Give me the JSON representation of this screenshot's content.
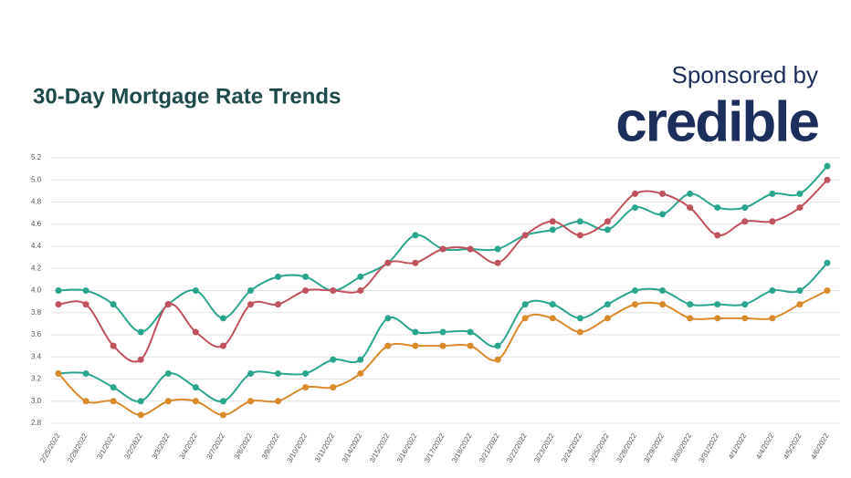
{
  "chart_data": {
    "type": "line",
    "title": "30-Day Mortgage Rate Trends",
    "sponsor_label": "Sponsored by",
    "sponsor": "credible",
    "categories": [
      "2/25/2022",
      "2/28/2022",
      "3/1/2022",
      "3/2/2022",
      "3/3/2022",
      "3/4/2022",
      "3/7/2022",
      "3/8/2022",
      "3/9/2022",
      "3/10/2022",
      "3/11/2022",
      "3/14/2022",
      "3/15/2022",
      "3/16/2022",
      "3/17/2022",
      "3/18/2022",
      "3/21/2022",
      "3/22/2022",
      "3/23/2022",
      "3/24/2022",
      "3/25/2022",
      "3/28/2022",
      "3/29/2022",
      "3/30/2022",
      "3/31/2022",
      "4/1/2022",
      "4/4/2022",
      "4/5/2022",
      "4/6/2022"
    ],
    "series": [
      {
        "color": "#2aa58e",
        "values": [
          4.0,
          4.0,
          3.875,
          3.625,
          3.875,
          4.0,
          3.75,
          4.0,
          4.125,
          4.125,
          4.0,
          4.125,
          4.25,
          4.5,
          4.375,
          4.375,
          4.375,
          4.5,
          4.55,
          4.625,
          4.55,
          4.75,
          4.69,
          4.875,
          4.75,
          4.75,
          4.875,
          4.875,
          5.125
        ]
      },
      {
        "color": "#c0525d",
        "values": [
          3.875,
          3.875,
          3.5,
          3.375,
          3.875,
          3.625,
          3.5,
          3.875,
          3.875,
          4.0,
          4.0,
          4.0,
          4.25,
          4.25,
          4.375,
          4.375,
          4.25,
          4.5,
          4.625,
          4.5,
          4.625,
          4.875,
          4.875,
          4.75,
          4.5,
          4.625,
          4.625,
          4.75,
          5.0
        ]
      },
      {
        "color": "#2aa58e",
        "values": [
          3.25,
          3.25,
          3.125,
          3.0,
          3.25,
          3.125,
          3.0,
          3.25,
          3.25,
          3.25,
          3.375,
          3.375,
          3.75,
          3.625,
          3.625,
          3.625,
          3.5,
          3.875,
          3.875,
          3.75,
          3.875,
          4.0,
          4.0,
          3.875,
          3.875,
          3.875,
          4.0,
          4.0,
          4.25
        ]
      },
      {
        "color": "#d98a2b",
        "values": [
          3.25,
          3.0,
          3.0,
          2.875,
          3.0,
          3.0,
          2.875,
          3.0,
          3.0,
          3.125,
          3.125,
          3.25,
          3.5,
          3.5,
          3.5,
          3.5,
          3.375,
          3.75,
          3.75,
          3.625,
          3.75,
          3.875,
          3.875,
          3.75,
          3.75,
          3.75,
          3.75,
          3.875,
          4.0
        ]
      }
    ],
    "ylim": [
      2.8,
      5.2
    ],
    "yticks": [
      2.8,
      {
        "value": 3.0,
        "label": "3.0"
      },
      3.2,
      3.4,
      3.6,
      3.8,
      {
        "value": 4.0,
        "label": "4.0"
      },
      4.2,
      4.4,
      4.6,
      4.8,
      {
        "value": 5.0,
        "label": "5.0"
      },
      5.2
    ],
    "grid": true
  }
}
